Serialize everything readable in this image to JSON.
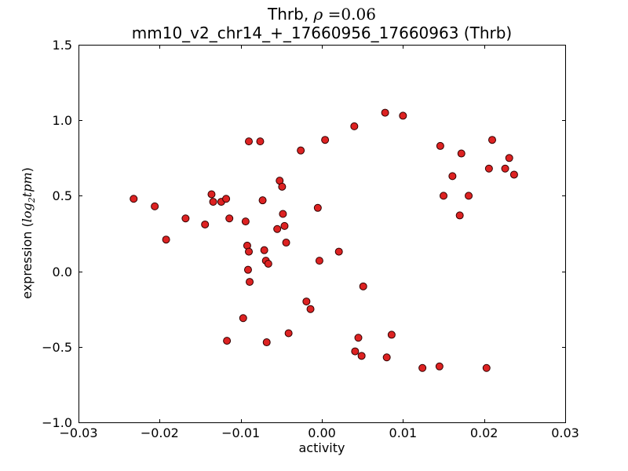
{
  "chart_data": {
    "type": "scatter",
    "title_line1": {
      "prefix": "Thrb, ",
      "rho": "ρ",
      "value": " =0.06"
    },
    "title_line2": "mm10_v2_chr14_+_17660956_17660963 (Thrb)",
    "xlabel": "activity",
    "ylabel": {
      "prefix": "expression (",
      "log": "log",
      "sub": "2",
      "var": "tpm",
      "suffix": ")"
    },
    "xlim": [
      -0.03,
      0.03
    ],
    "ylim": [
      -1.0,
      1.5
    ],
    "xticks": {
      "values": [
        -0.03,
        -0.02,
        -0.01,
        0.0,
        0.01,
        0.02,
        0.03
      ],
      "labels": [
        "−0.03",
        "−0.02",
        "−0.01",
        "0.00",
        "0.01",
        "0.02",
        "0.03"
      ]
    },
    "yticks": {
      "values": [
        -1.0,
        -0.5,
        0.0,
        0.5,
        1.0,
        1.5
      ],
      "labels": [
        "−1.0",
        "−0.5",
        "0.0",
        "0.5",
        "1.0",
        "1.5"
      ]
    },
    "grid": false,
    "legend": null,
    "marker": {
      "shape": "circle",
      "fill": "#dd2222",
      "edge": "#300000",
      "radius": 4.5
    },
    "axis_color": "#000000",
    "points": [
      [
        -0.0232,
        0.48
      ],
      [
        -0.0206,
        0.43
      ],
      [
        -0.0192,
        0.21
      ],
      [
        -0.0168,
        0.35
      ],
      [
        -0.0144,
        0.31
      ],
      [
        -0.0136,
        0.51
      ],
      [
        -0.0134,
        0.46
      ],
      [
        -0.0124,
        0.46
      ],
      [
        -0.0118,
        0.48
      ],
      [
        -0.0114,
        0.35
      ],
      [
        -0.0117,
        -0.46
      ],
      [
        -0.0097,
        -0.31
      ],
      [
        -0.0094,
        0.33
      ],
      [
        -0.0092,
        0.17
      ],
      [
        -0.009,
        0.13
      ],
      [
        -0.0091,
        0.01
      ],
      [
        -0.0089,
        -0.07
      ],
      [
        -0.009,
        0.86
      ],
      [
        -0.0076,
        0.86
      ],
      [
        -0.0073,
        0.47
      ],
      [
        -0.0071,
        0.14
      ],
      [
        -0.0069,
        0.07
      ],
      [
        -0.0066,
        0.05
      ],
      [
        -0.0068,
        -0.47
      ],
      [
        -0.0055,
        0.28
      ],
      [
        -0.0052,
        0.6
      ],
      [
        -0.0049,
        0.56
      ],
      [
        -0.0048,
        0.38
      ],
      [
        -0.0046,
        0.3
      ],
      [
        -0.0044,
        0.19
      ],
      [
        -0.0041,
        -0.41
      ],
      [
        -0.0026,
        0.8
      ],
      [
        -0.0019,
        -0.2
      ],
      [
        -0.0014,
        -0.25
      ],
      [
        -0.0005,
        0.42
      ],
      [
        -0.0003,
        0.07
      ],
      [
        0.0004,
        0.87
      ],
      [
        0.0021,
        0.13
      ],
      [
        0.004,
        0.96
      ],
      [
        0.0041,
        -0.53
      ],
      [
        0.0045,
        -0.44
      ],
      [
        0.0049,
        -0.56
      ],
      [
        0.0051,
        -0.1
      ],
      [
        0.0078,
        1.05
      ],
      [
        0.008,
        -0.57
      ],
      [
        0.0086,
        -0.42
      ],
      [
        0.01,
        1.03
      ],
      [
        0.0124,
        -0.64
      ],
      [
        0.0145,
        -0.63
      ],
      [
        0.0146,
        0.83
      ],
      [
        0.015,
        0.5
      ],
      [
        0.0161,
        0.63
      ],
      [
        0.017,
        0.37
      ],
      [
        0.0172,
        0.78
      ],
      [
        0.0181,
        0.5
      ],
      [
        0.0203,
        -0.64
      ],
      [
        0.0206,
        0.68
      ],
      [
        0.021,
        0.87
      ],
      [
        0.0226,
        0.68
      ],
      [
        0.0231,
        0.75
      ],
      [
        0.0237,
        0.64
      ]
    ]
  }
}
